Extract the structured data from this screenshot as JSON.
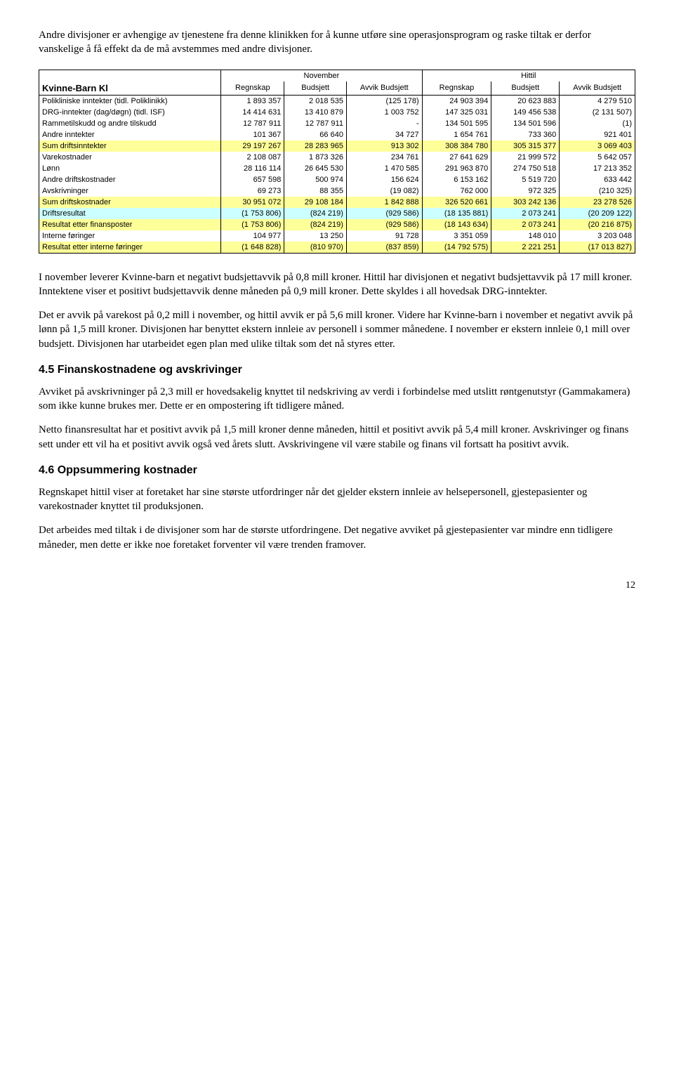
{
  "intro": "Andre divisjoner er avhengige av tjenestene fra denne klinikken for å kunne utføre sine operasjonsprogram og raske tiltak er derfor vanskelige å få effekt da de må avstemmes med andre divisjoner.",
  "table": {
    "title": "Kvinne-Barn Kl",
    "group1": "November",
    "group2": "Hittil",
    "cols": [
      "Regnskap",
      "Budsjett",
      "Avvik Budsjett",
      "Regnskap",
      "Budsjett",
      "Avvik Budsjett"
    ],
    "row_colors": {
      "plain": "#ffffff",
      "yellow": "#ffff99",
      "blue": "#ccffff"
    },
    "rows": [
      {
        "label": "Polikliniske inntekter (tidl. Poliklinikk)",
        "vals": [
          "1 893 357",
          "2 018 535",
          "(125 178)",
          "24 903 394",
          "20 623 883",
          "4 279 510"
        ],
        "hl": "plain"
      },
      {
        "label": "DRG-inntekter (dag/døgn) (tidl. ISF)",
        "vals": [
          "14 414 631",
          "13 410 879",
          "1 003 752",
          "147 325 031",
          "149 456 538",
          "(2 131 507)"
        ],
        "hl": "plain"
      },
      {
        "label": "Rammetilskudd og andre tilskudd",
        "vals": [
          "12 787 911",
          "12 787 911",
          "-",
          "134 501 595",
          "134 501 596",
          "(1)"
        ],
        "hl": "plain"
      },
      {
        "label": "Andre inntekter",
        "vals": [
          "101 367",
          "66 640",
          "34 727",
          "1 654 761",
          "733 360",
          "921 401"
        ],
        "hl": "plain"
      },
      {
        "label": "Sum driftsinntekter",
        "vals": [
          "29 197 267",
          "28 283 965",
          "913 302",
          "308 384 780",
          "305 315 377",
          "3 069 403"
        ],
        "hl": "yellow"
      },
      {
        "label": "Varekostnader",
        "vals": [
          "2 108 087",
          "1 873 326",
          "234 761",
          "27 641 629",
          "21 999 572",
          "5 642 057"
        ],
        "hl": "plain"
      },
      {
        "label": "Lønn",
        "vals": [
          "28 116 114",
          "26 645 530",
          "1 470 585",
          "291 963 870",
          "274 750 518",
          "17 213 352"
        ],
        "hl": "plain"
      },
      {
        "label": "Andre driftskostnader",
        "vals": [
          "657 598",
          "500 974",
          "156 624",
          "6 153 162",
          "5 519 720",
          "633 442"
        ],
        "hl": "plain"
      },
      {
        "label": "Avskrivninger",
        "vals": [
          "69 273",
          "88 355",
          "(19 082)",
          "762 000",
          "972 325",
          "(210 325)"
        ],
        "hl": "plain"
      },
      {
        "label": "Sum driftskostnader",
        "vals": [
          "30 951 072",
          "29 108 184",
          "1 842 888",
          "326 520 661",
          "303 242 136",
          "23 278 526"
        ],
        "hl": "yellow"
      },
      {
        "label": "Driftsresultat",
        "vals": [
          "(1 753 806)",
          "(824 219)",
          "(929 586)",
          "(18 135 881)",
          "2 073 241",
          "(20 209 122)"
        ],
        "hl": "blue"
      },
      {
        "label": "Resultat etter finansposter",
        "vals": [
          "(1 753 806)",
          "(824 219)",
          "(929 586)",
          "(18 143 634)",
          "2 073 241",
          "(20 216 875)"
        ],
        "hl": "yellow"
      },
      {
        "label": "Interne føringer",
        "vals": [
          "104 977",
          "13 250",
          "91 728",
          "3 351 059",
          "148 010",
          "3 203 048"
        ],
        "hl": "plain"
      },
      {
        "label": "Resultat etter interne føringer",
        "vals": [
          "(1 648 828)",
          "(810 970)",
          "(837 859)",
          "(14 792 575)",
          "2 221 251",
          "(17 013 827)"
        ],
        "hl": "yellow"
      }
    ]
  },
  "para1": "I november leverer Kvinne-barn et negativt budsjettavvik på 0,8 mill kroner. Hittil har divisjonen et negativt budsjettavvik på 17 mill kroner. Inntektene viser et positivt budsjettavvik denne måneden på 0,9 mill kroner. Dette skyldes i all hovedsak DRG-inntekter.",
  "para2": "Det er avvik på varekost på 0,2 mill i november, og hittil avvik er på 5,6 mill kroner. Videre har Kvinne-barn i november et negativt avvik på lønn på 1,5 mill kroner. Divisjonen har benyttet ekstern innleie av personell i sommer månedene. I november er ekstern innleie 0,1 mill over budsjett. Divisjonen har utarbeidet egen plan med ulike tiltak som det nå styres etter.",
  "h45": "4.5 Finanskostnadene og avskrivinger",
  "para3": "Avviket på avskrivninger på 2,3 mill er hovedsakelig knyttet til nedskriving av verdi i forbindelse med utslitt røntgenutstyr (Gammakamera) som ikke kunne brukes mer. Dette er en ompostering ift tidligere måned.",
  "para4": "Netto finansresultat har et positivt avvik på 1,5 mill kroner denne måneden, hittil et positivt avvik på 5,4 mill kroner. Avskrivinger og finans sett under ett vil ha et positivt avvik også ved årets slutt.  Avskrivingene vil være stabile og finans vil fortsatt ha positivt avvik.",
  "h46": "4.6 Oppsummering kostnader",
  "para5": "Regnskapet hittil viser at foretaket har sine største utfordringer når det gjelder ekstern innleie av helsepersonell, gjestepasienter og varekostnader knyttet til produksjonen.",
  "para6": "Det arbeides med tiltak i de divisjoner som har de største utfordringene. Det negative avviket på gjestepasienter var mindre enn tidligere måneder, men dette er ikke noe foretaket forventer vil være trenden framover.",
  "page_number": "12"
}
